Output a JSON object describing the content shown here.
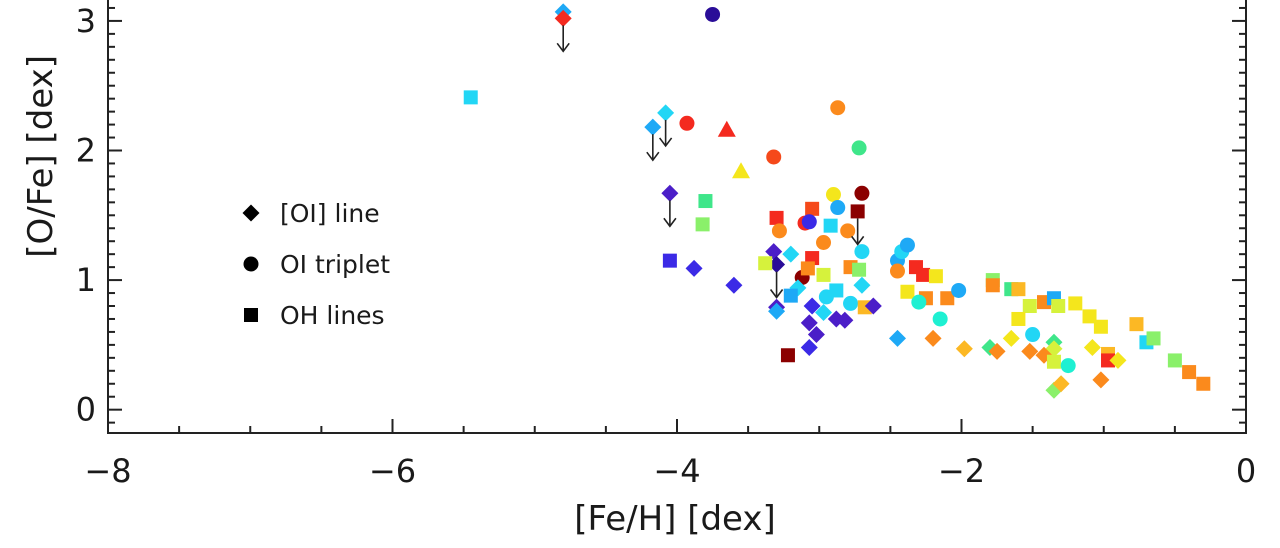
{
  "chart_data": {
    "type": "scatter",
    "xlabel": "[Fe/H] [dex]",
    "ylabel": "[O/Fe] [dex]",
    "xlim": [
      -8,
      0
    ],
    "ylim": [
      -0.18,
      3.2
    ],
    "x_ticks": [
      -8,
      -6,
      -4,
      -2,
      0
    ],
    "y_ticks": [
      0,
      1,
      2,
      3
    ],
    "x_tick_labels": [
      "−8",
      "−6",
      "−4",
      "−2",
      "0"
    ],
    "y_tick_labels": [
      "0",
      "1",
      "2",
      "3"
    ],
    "grid": false,
    "legend_position": "left-center",
    "legend": [
      {
        "marker": "diamond",
        "label": "[OI] line"
      },
      {
        "marker": "circle",
        "label": "OI triplet"
      },
      {
        "marker": "square",
        "label": "OH lines"
      }
    ],
    "marker_colors": {
      "darkred": "#8b0000",
      "red": "#f42a1f",
      "redorange": "#f5491a",
      "orange": "#fb8a1c",
      "orangeyellow": "#fcb824",
      "yellow": "#f4e61c",
      "yellowgreen": "#d6f23c",
      "lightgreen": "#8af06a",
      "green": "#3fe68a",
      "aqua": "#1ef0d2",
      "cyan": "#22d6f5",
      "skyblue": "#1ea9f6",
      "blue": "#1e6ef0",
      "indigo": "#3b2ae6",
      "violet": "#4b1ec8",
      "purple": "#3a16a8",
      "deeppurple": "#2a0d98"
    },
    "points": [
      {
        "x": -4.8,
        "y": 3.07,
        "marker": "diamond",
        "color": "skyblue"
      },
      {
        "x": -4.8,
        "y": 3.02,
        "marker": "diamond",
        "color": "red",
        "upper_limit": true
      },
      {
        "x": -3.75,
        "y": 3.05,
        "marker": "circle",
        "color": "deeppurple"
      },
      {
        "x": -5.45,
        "y": 2.41,
        "marker": "square",
        "color": "cyan"
      },
      {
        "x": -4.08,
        "y": 2.29,
        "marker": "diamond",
        "color": "cyan",
        "upper_limit": true
      },
      {
        "x": -4.17,
        "y": 2.18,
        "marker": "diamond",
        "color": "skyblue",
        "upper_limit": true
      },
      {
        "x": -3.93,
        "y": 2.21,
        "marker": "circle",
        "color": "red"
      },
      {
        "x": -3.65,
        "y": 2.16,
        "marker": "triangle",
        "color": "red"
      },
      {
        "x": -3.55,
        "y": 1.84,
        "marker": "triangle",
        "color": "yellow"
      },
      {
        "x": -3.32,
        "y": 1.95,
        "marker": "circle",
        "color": "redorange"
      },
      {
        "x": -2.87,
        "y": 2.33,
        "marker": "circle",
        "color": "orange"
      },
      {
        "x": -2.72,
        "y": 2.02,
        "marker": "circle",
        "color": "green"
      },
      {
        "x": -4.05,
        "y": 1.67,
        "marker": "diamond",
        "color": "violet",
        "upper_limit": true
      },
      {
        "x": -3.8,
        "y": 1.61,
        "marker": "square",
        "color": "green"
      },
      {
        "x": -3.82,
        "y": 1.43,
        "marker": "square",
        "color": "lightgreen"
      },
      {
        "x": -4.05,
        "y": 1.15,
        "marker": "square",
        "color": "indigo"
      },
      {
        "x": -3.88,
        "y": 1.09,
        "marker": "diamond",
        "color": "indigo"
      },
      {
        "x": -3.6,
        "y": 0.96,
        "marker": "diamond",
        "color": "indigo"
      },
      {
        "x": -2.7,
        "y": 1.67,
        "marker": "circle",
        "color": "darkred"
      },
      {
        "x": -2.73,
        "y": 1.53,
        "marker": "square",
        "color": "darkred",
        "upper_limit": true
      },
      {
        "x": -2.9,
        "y": 1.66,
        "marker": "circle",
        "color": "yellow"
      },
      {
        "x": -2.87,
        "y": 1.56,
        "marker": "circle",
        "color": "skyblue"
      },
      {
        "x": -3.05,
        "y": 1.55,
        "marker": "square",
        "color": "redorange"
      },
      {
        "x": -3.3,
        "y": 1.48,
        "marker": "square",
        "color": "red"
      },
      {
        "x": -3.1,
        "y": 1.44,
        "marker": "circle",
        "color": "red"
      },
      {
        "x": -3.07,
        "y": 1.45,
        "marker": "circle",
        "color": "indigo"
      },
      {
        "x": -2.92,
        "y": 1.42,
        "marker": "square",
        "color": "cyan"
      },
      {
        "x": -2.8,
        "y": 1.38,
        "marker": "circle",
        "color": "orange"
      },
      {
        "x": -3.28,
        "y": 1.38,
        "marker": "circle",
        "color": "orange"
      },
      {
        "x": -2.97,
        "y": 1.29,
        "marker": "circle",
        "color": "orange"
      },
      {
        "x": -3.32,
        "y": 1.22,
        "marker": "diamond",
        "color": "violet"
      },
      {
        "x": -3.3,
        "y": 1.12,
        "marker": "diamond",
        "color": "deeppurple",
        "upper_limit": true
      },
      {
        "x": -3.2,
        "y": 1.2,
        "marker": "diamond",
        "color": "cyan"
      },
      {
        "x": -3.38,
        "y": 1.13,
        "marker": "square",
        "color": "yellowgreen"
      },
      {
        "x": -3.05,
        "y": 1.17,
        "marker": "square",
        "color": "red"
      },
      {
        "x": -3.12,
        "y": 1.02,
        "marker": "circle",
        "color": "darkred"
      },
      {
        "x": -3.15,
        "y": 0.94,
        "marker": "diamond",
        "color": "cyan"
      },
      {
        "x": -3.2,
        "y": 0.88,
        "marker": "square",
        "color": "skyblue"
      },
      {
        "x": -3.08,
        "y": 1.09,
        "marker": "square",
        "color": "orange"
      },
      {
        "x": -2.97,
        "y": 1.04,
        "marker": "square",
        "color": "yellowgreen"
      },
      {
        "x": -2.88,
        "y": 0.92,
        "marker": "square",
        "color": "cyan"
      },
      {
        "x": -2.95,
        "y": 0.87,
        "marker": "circle",
        "color": "cyan"
      },
      {
        "x": -2.78,
        "y": 1.1,
        "marker": "square",
        "color": "orange"
      },
      {
        "x": -2.72,
        "y": 1.08,
        "marker": "square",
        "color": "lightgreen"
      },
      {
        "x": -2.7,
        "y": 1.22,
        "marker": "circle",
        "color": "cyan"
      },
      {
        "x": -2.7,
        "y": 0.96,
        "marker": "diamond",
        "color": "cyan"
      },
      {
        "x": -3.3,
        "y": 0.79,
        "marker": "diamond",
        "color": "violet"
      },
      {
        "x": -3.3,
        "y": 0.76,
        "marker": "diamond",
        "color": "skyblue"
      },
      {
        "x": -3.05,
        "y": 0.8,
        "marker": "diamond",
        "color": "indigo"
      },
      {
        "x": -2.97,
        "y": 0.75,
        "marker": "diamond",
        "color": "cyan"
      },
      {
        "x": -2.88,
        "y": 0.7,
        "marker": "diamond",
        "color": "violet"
      },
      {
        "x": -3.07,
        "y": 0.67,
        "marker": "diamond",
        "color": "violet"
      },
      {
        "x": -2.82,
        "y": 0.69,
        "marker": "diamond",
        "color": "violet"
      },
      {
        "x": -2.78,
        "y": 0.82,
        "marker": "circle",
        "color": "cyan"
      },
      {
        "x": -3.02,
        "y": 0.58,
        "marker": "diamond",
        "color": "violet"
      },
      {
        "x": -3.07,
        "y": 0.48,
        "marker": "diamond",
        "color": "indigo"
      },
      {
        "x": -3.22,
        "y": 0.42,
        "marker": "square",
        "color": "darkred"
      },
      {
        "x": -2.68,
        "y": 0.79,
        "marker": "square",
        "color": "orangeyellow"
      },
      {
        "x": -2.62,
        "y": 0.8,
        "marker": "diamond",
        "color": "violet"
      },
      {
        "x": -2.45,
        "y": 1.15,
        "marker": "circle",
        "color": "skyblue"
      },
      {
        "x": -2.42,
        "y": 1.22,
        "marker": "circle",
        "color": "cyan"
      },
      {
        "x": -2.38,
        "y": 1.27,
        "marker": "circle",
        "color": "skyblue"
      },
      {
        "x": -2.45,
        "y": 1.07,
        "marker": "circle",
        "color": "orange"
      },
      {
        "x": -2.32,
        "y": 1.1,
        "marker": "square",
        "color": "red"
      },
      {
        "x": -2.27,
        "y": 1.04,
        "marker": "square",
        "color": "red"
      },
      {
        "x": -2.18,
        "y": 1.03,
        "marker": "square",
        "color": "yellow"
      },
      {
        "x": -2.38,
        "y": 0.91,
        "marker": "square",
        "color": "yellow"
      },
      {
        "x": -2.25,
        "y": 0.86,
        "marker": "square",
        "color": "orange"
      },
      {
        "x": -2.1,
        "y": 0.86,
        "marker": "square",
        "color": "orange"
      },
      {
        "x": -2.02,
        "y": 0.92,
        "marker": "circle",
        "color": "skyblue"
      },
      {
        "x": -2.3,
        "y": 0.83,
        "marker": "circle",
        "color": "aqua"
      },
      {
        "x": -2.15,
        "y": 0.7,
        "marker": "circle",
        "color": "aqua"
      },
      {
        "x": -2.45,
        "y": 0.55,
        "marker": "diamond",
        "color": "skyblue"
      },
      {
        "x": -2.2,
        "y": 0.55,
        "marker": "diamond",
        "color": "orange"
      },
      {
        "x": -1.98,
        "y": 0.47,
        "marker": "diamond",
        "color": "orangeyellow"
      },
      {
        "x": -1.78,
        "y": 1.0,
        "marker": "square",
        "color": "lightgreen"
      },
      {
        "x": -1.78,
        "y": 0.96,
        "marker": "square",
        "color": "orange"
      },
      {
        "x": -1.65,
        "y": 0.93,
        "marker": "square",
        "color": "green"
      },
      {
        "x": -1.6,
        "y": 0.93,
        "marker": "square",
        "color": "orangeyellow"
      },
      {
        "x": -1.52,
        "y": 0.8,
        "marker": "square",
        "color": "yellowgreen"
      },
      {
        "x": -1.6,
        "y": 0.7,
        "marker": "square",
        "color": "yellow"
      },
      {
        "x": -1.42,
        "y": 0.83,
        "marker": "square",
        "color": "orange"
      },
      {
        "x": -1.35,
        "y": 0.86,
        "marker": "square",
        "color": "skyblue"
      },
      {
        "x": -1.32,
        "y": 0.8,
        "marker": "square",
        "color": "yellowgreen"
      },
      {
        "x": -1.2,
        "y": 0.82,
        "marker": "square",
        "color": "yellow"
      },
      {
        "x": -1.1,
        "y": 0.72,
        "marker": "square",
        "color": "yellow"
      },
      {
        "x": -1.02,
        "y": 0.64,
        "marker": "square",
        "color": "yellow"
      },
      {
        "x": -0.77,
        "y": 0.66,
        "marker": "square",
        "color": "orangeyellow"
      },
      {
        "x": -1.5,
        "y": 0.58,
        "marker": "circle",
        "color": "cyan"
      },
      {
        "x": -1.35,
        "y": 0.52,
        "marker": "diamond",
        "color": "green"
      },
      {
        "x": -1.35,
        "y": 0.47,
        "marker": "diamond",
        "color": "yellowgreen"
      },
      {
        "x": -1.8,
        "y": 0.48,
        "marker": "diamond",
        "color": "green"
      },
      {
        "x": -1.75,
        "y": 0.45,
        "marker": "diamond",
        "color": "orange"
      },
      {
        "x": -1.65,
        "y": 0.55,
        "marker": "diamond",
        "color": "yellow"
      },
      {
        "x": -1.52,
        "y": 0.45,
        "marker": "diamond",
        "color": "orange"
      },
      {
        "x": -1.42,
        "y": 0.42,
        "marker": "diamond",
        "color": "orange"
      },
      {
        "x": -1.35,
        "y": 0.37,
        "marker": "square",
        "color": "yellowgreen"
      },
      {
        "x": -1.25,
        "y": 0.34,
        "marker": "circle",
        "color": "aqua"
      },
      {
        "x": -1.08,
        "y": 0.48,
        "marker": "diamond",
        "color": "yellow"
      },
      {
        "x": -0.97,
        "y": 0.43,
        "marker": "square",
        "color": "orangeyellow"
      },
      {
        "x": -0.97,
        "y": 0.38,
        "marker": "square",
        "color": "red"
      },
      {
        "x": -0.9,
        "y": 0.38,
        "marker": "diamond",
        "color": "yellow"
      },
      {
        "x": -1.35,
        "y": 0.15,
        "marker": "diamond",
        "color": "lightgreen"
      },
      {
        "x": -1.3,
        "y": 0.2,
        "marker": "diamond",
        "color": "orangeyellow"
      },
      {
        "x": -1.02,
        "y": 0.23,
        "marker": "diamond",
        "color": "orange"
      },
      {
        "x": -0.7,
        "y": 0.52,
        "marker": "square",
        "color": "cyan"
      },
      {
        "x": -0.65,
        "y": 0.55,
        "marker": "square",
        "color": "lightgreen"
      },
      {
        "x": -0.5,
        "y": 0.38,
        "marker": "square",
        "color": "lightgreen"
      },
      {
        "x": -0.4,
        "y": 0.29,
        "marker": "square",
        "color": "orange"
      },
      {
        "x": -0.3,
        "y": 0.2,
        "marker": "square",
        "color": "orange"
      }
    ]
  }
}
